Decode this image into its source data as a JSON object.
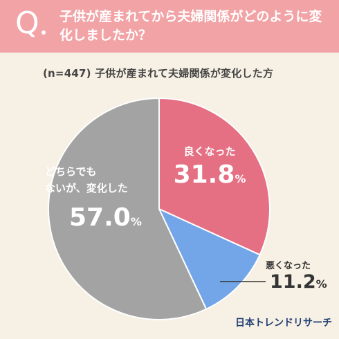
{
  "question": {
    "mark": "Q",
    "text": "子供が産まれてから夫婦関係がどのように変化しましたか？"
  },
  "chart_data": {
    "type": "pie",
    "title": "(n=447) 子供が産まれて夫婦関係が変化した方",
    "categories": [
      "良くなった",
      "悪くなった",
      "どちらでもないが、変化した"
    ],
    "values": [
      31.8,
      11.2,
      57.0
    ],
    "value_labels": [
      "31.8",
      "11.2",
      "57.0"
    ],
    "unit": "%",
    "colors": [
      "#e56f83",
      "#73a6e8",
      "#a3a3a3"
    ],
    "start_angle_deg": 0,
    "direction": "clockwise"
  },
  "labels": {
    "good": "良くなった",
    "bad": "悪くなった",
    "neither_line1": "どちらでも",
    "neither_line2": "ないが、変化した",
    "good_value": "31.8",
    "bad_value": "11.2",
    "neither_value": "57.0",
    "pct": "%"
  },
  "brand": "日本トレンドリサーチ"
}
